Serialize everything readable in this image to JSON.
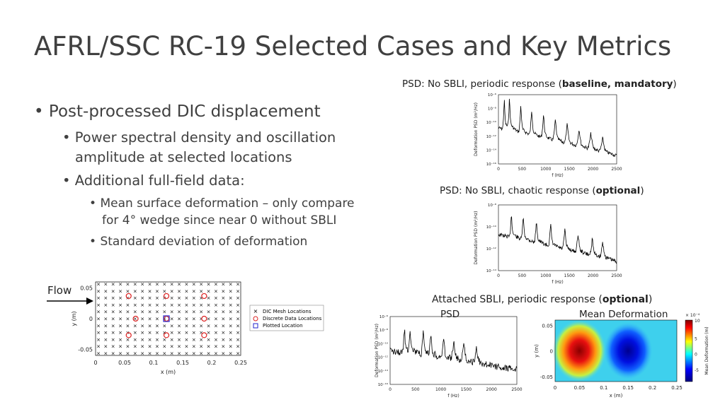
{
  "slide": {
    "title": "AFRL/SSC RC-19 Selected Cases and Key Metrics",
    "bullets": {
      "b1": "Post-processed DIC displacement",
      "b2a_l1": "Power spectral density and oscillation",
      "b2a_l2": "amplitude at selected locations",
      "b2b": "Additional full-field data:",
      "b3a_l1": "Mean surface deformation – only compare",
      "b3a_l2": "for 4° wedge since near 0 without SBLI",
      "b3b": "Standard deviation of deformation"
    },
    "captions": {
      "c1_pre": "PSD: No SBLI, periodic response (",
      "c1_bold": "baseline, mandatory",
      "c1_post": ")",
      "c2_pre": "PSD: No SBLI, chaotic response (",
      "c2_bold": "optional",
      "c2_post": ")",
      "c3_pre": "Attached SBLI, periodic response (",
      "c3_bold": "optional",
      "c3_post": ")",
      "psd": "PSD",
      "mean_def": "Mean Deformation"
    },
    "flow_label": "Flow"
  },
  "chart_data": [
    {
      "type": "scatter",
      "xlabel": "x (m)",
      "ylabel": "y (m)",
      "xticks": [
        "0",
        "0.05",
        "0.1",
        "0.15",
        "0.2",
        "0.25"
      ],
      "yticks": [
        "0.05",
        "0",
        "-0.05"
      ],
      "xlim": [
        0,
        0.25
      ],
      "ylim": [
        -0.06,
        0.06
      ],
      "legend": [
        "DIC Mesh Locations",
        "Discrete Data Locations",
        "Plotted Location"
      ],
      "legend_placement": "right",
      "discrete_points": [
        [
          0.057,
          0.037
        ],
        [
          0.122,
          0.037
        ],
        [
          0.187,
          0.037
        ],
        [
          0.069,
          0.0
        ],
        [
          0.122,
          0.0
        ],
        [
          0.187,
          0.0
        ],
        [
          0.057,
          -0.027
        ],
        [
          0.122,
          -0.027
        ],
        [
          0.187,
          -0.027
        ]
      ],
      "plotted_point": [
        0.122,
        0.0
      ]
    },
    {
      "type": "line",
      "xlabel": "f (Hz)",
      "ylabel": "Deformation PSD (m²/Hz)",
      "xticks": [
        "0",
        "500",
        "1000",
        "1500",
        "2000",
        "2500"
      ],
      "yticks": [
        "10⁻⁶",
        "10⁻⁸",
        "10⁻¹⁰",
        "10⁻¹²",
        "10⁻¹⁴",
        "10⁻¹⁶"
      ],
      "peaks_hz": [
        120,
        230,
        470,
        700,
        950,
        1200,
        1450,
        1700,
        1950,
        2200
      ]
    },
    {
      "type": "line",
      "xlabel": "f (Hz)",
      "ylabel": "Deformation PSD (m²/Hz)",
      "xticks": [
        "0",
        "500",
        "1000",
        "1500",
        "2000",
        "2500"
      ],
      "yticks": [
        "10⁻⁸",
        "10⁻¹⁰",
        "10⁻¹²",
        "10⁻¹⁴"
      ],
      "peaks_hz": [
        270,
        520,
        800,
        1100,
        1400,
        1680,
        1980,
        2200
      ]
    },
    {
      "type": "line",
      "xlabel": "f (Hz)",
      "ylabel": "Deformation PSD (m²/Hz)",
      "xticks": [
        "0",
        "500",
        "1000",
        "1500",
        "2000",
        "2500"
      ],
      "yticks": [
        "10⁻⁶",
        "10⁻⁸",
        "10⁻¹⁰",
        "10⁻¹²",
        "10⁻¹⁴",
        "10⁻¹⁶"
      ],
      "peaks_hz": [
        280,
        390,
        650,
        800,
        1050,
        1250,
        1450,
        1700
      ]
    },
    {
      "type": "heatmap",
      "xlabel": "x (m)",
      "ylabel": "y (m)",
      "xticks": [
        "0",
        "0.05",
        "0.1",
        "0.15",
        "0.2",
        "0.25"
      ],
      "yticks": [
        "0.05",
        "0",
        "-0.05"
      ],
      "colorbar_label": "Mean Deformation (m)",
      "colorbar_exponent": "× 10⁻⁴",
      "colorbar_ticks": [
        "10",
        "5",
        "0",
        "-5"
      ],
      "features": [
        {
          "x": 0.05,
          "y": 0.0,
          "sign": "positive"
        },
        {
          "x": 0.15,
          "y": 0.0,
          "sign": "negative"
        }
      ]
    }
  ]
}
